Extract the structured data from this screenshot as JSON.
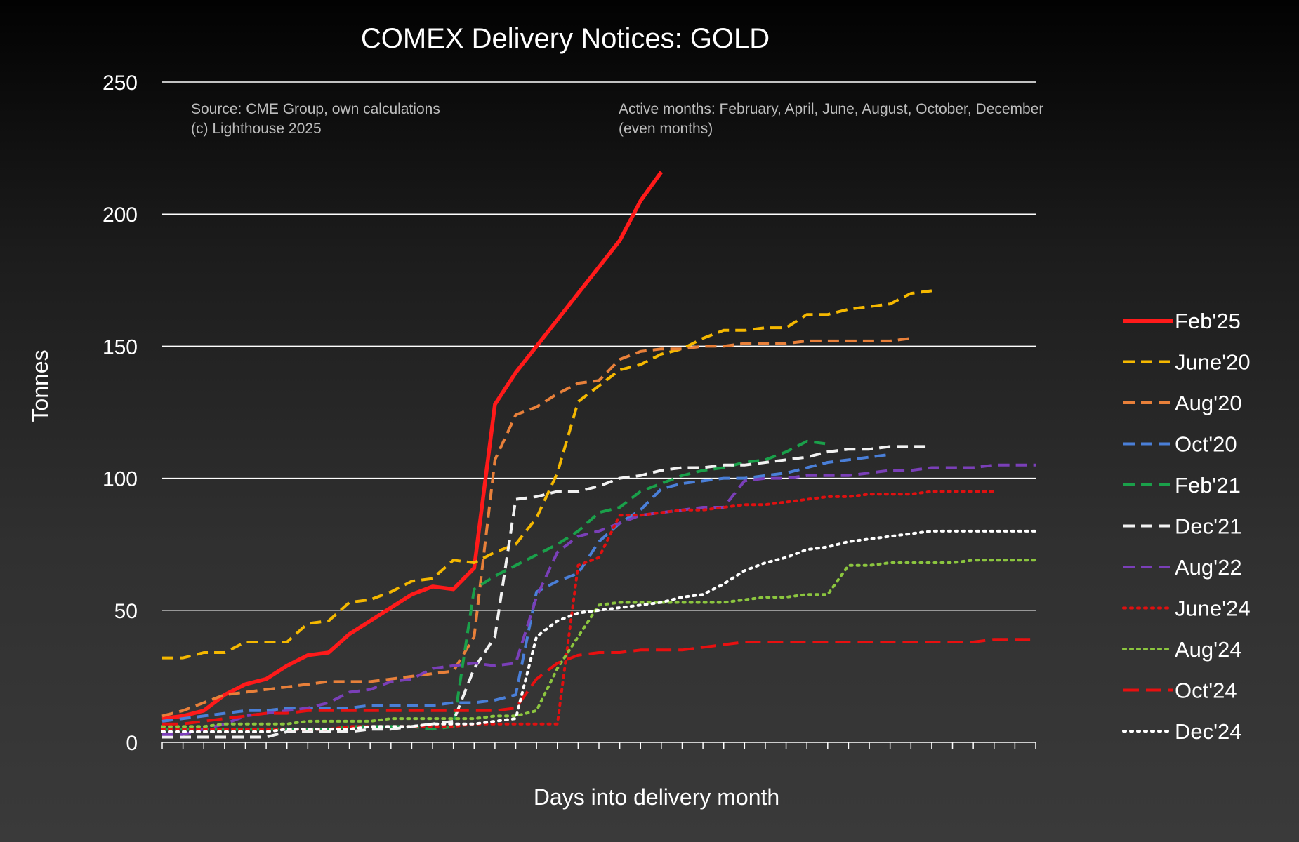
{
  "chart_data": {
    "type": "line",
    "title": "COMEX Delivery Notices: GOLD",
    "xlabel": "Days into delivery month",
    "ylabel": "Tonnes",
    "ylim": [
      0,
      250
    ],
    "yticks": [
      "0",
      "50",
      "100",
      "150",
      "200",
      "250"
    ],
    "xlim": [
      0,
      42
    ],
    "grid": "horizontal",
    "legend_position": "right",
    "notes": {
      "source_line1": "Source: CME Group, own calculations",
      "source_line2": "(c) Lighthouse 2025",
      "active_line1": "Active months: February, April, June, August, October, December",
      "active_line2": "(even months)"
    },
    "series": [
      {
        "name": "Feb'25",
        "color": "#ff1a1a",
        "dash": "solid",
        "x": [
          0,
          1,
          2,
          3,
          4,
          5,
          6,
          7,
          8,
          9,
          10,
          11,
          12,
          13,
          14,
          15,
          16,
          17,
          18,
          19,
          20,
          21,
          22,
          23,
          24,
          25,
          26,
          27,
          28,
          29
        ],
        "y": [
          9,
          10,
          12,
          18,
          22,
          24,
          29,
          33,
          34,
          41,
          46,
          51,
          56,
          59,
          58,
          66,
          128,
          140,
          150,
          160,
          170,
          180,
          190,
          205,
          216,
          null,
          null,
          null,
          null,
          null
        ]
      },
      {
        "name": "June'20",
        "color": "#f5b800",
        "dash": "dash",
        "x": [
          0,
          1,
          2,
          3,
          4,
          5,
          6,
          7,
          8,
          9,
          10,
          11,
          12,
          13,
          14,
          15,
          16,
          17,
          18,
          19,
          20,
          21,
          22,
          23,
          24,
          25,
          26,
          27,
          28,
          29,
          30,
          31,
          32,
          33,
          34,
          35,
          36,
          37,
          38,
          39
        ],
        "y": [
          32,
          32,
          34,
          34,
          38,
          38,
          38,
          45,
          46,
          53,
          54,
          57,
          61,
          62,
          69,
          68,
          72,
          75,
          85,
          102,
          129,
          135,
          141,
          143,
          147,
          149,
          153,
          156,
          156,
          157,
          157,
          162,
          162,
          164,
          165,
          166,
          170,
          171,
          null,
          null
        ]
      },
      {
        "name": "Aug'20",
        "color": "#e8803a",
        "dash": "dash",
        "x": [
          0,
          1,
          2,
          3,
          4,
          5,
          6,
          7,
          8,
          9,
          10,
          11,
          12,
          13,
          14,
          15,
          16,
          17,
          18,
          19,
          20,
          21,
          22,
          23,
          24,
          25,
          26,
          27,
          28,
          29,
          30,
          31,
          32,
          33,
          34,
          35,
          36,
          37,
          38
        ],
        "y": [
          10,
          12,
          15,
          18,
          19,
          20,
          21,
          22,
          23,
          23,
          23,
          24,
          25,
          26,
          27,
          40,
          107,
          124,
          127,
          132,
          136,
          137,
          145,
          148,
          149,
          149,
          150,
          150,
          151,
          151,
          151,
          152,
          152,
          152,
          152,
          152,
          153,
          null,
          null
        ]
      },
      {
        "name": "Oct'20",
        "color": "#4a7fd8",
        "dash": "dash",
        "x": [
          0,
          1,
          2,
          3,
          4,
          5,
          6,
          7,
          8,
          9,
          10,
          11,
          12,
          13,
          14,
          15,
          16,
          17,
          18,
          19,
          20,
          21,
          22,
          23,
          24,
          25,
          26,
          27,
          28,
          29,
          30,
          31,
          32,
          33,
          34,
          35,
          36,
          37
        ],
        "y": [
          8,
          9,
          10,
          11,
          12,
          12,
          13,
          13,
          13,
          13,
          14,
          14,
          14,
          14,
          15,
          15,
          16,
          18,
          57,
          61,
          64,
          76,
          83,
          88,
          96,
          98,
          99,
          100,
          100,
          101,
          102,
          104,
          106,
          107,
          108,
          109,
          null,
          null
        ]
      },
      {
        "name": "Feb'21",
        "color": "#1aa04a",
        "dash": "dash",
        "x": [
          0,
          1,
          2,
          3,
          4,
          5,
          6,
          7,
          8,
          9,
          10,
          11,
          12,
          13,
          14,
          15,
          16,
          17,
          18,
          19,
          20,
          21,
          22,
          23,
          24,
          25,
          26,
          27,
          28,
          29,
          30,
          31,
          32,
          33
        ],
        "y": [
          5,
          5,
          5,
          5,
          5,
          5,
          5,
          5,
          5,
          6,
          6,
          6,
          6,
          5,
          6,
          58,
          63,
          67,
          71,
          75,
          80,
          87,
          89,
          95,
          98,
          101,
          103,
          104,
          106,
          107,
          110,
          114,
          113,
          null
        ]
      },
      {
        "name": "Dec'21",
        "color": "#f2f2f2",
        "dash": "dash",
        "x": [
          0,
          1,
          2,
          3,
          4,
          5,
          6,
          7,
          8,
          9,
          10,
          11,
          12,
          13,
          14,
          15,
          16,
          17,
          18,
          19,
          20,
          21,
          22,
          23,
          24,
          25,
          26,
          27,
          28,
          29,
          30,
          31,
          32,
          33,
          34,
          35,
          36,
          37,
          38
        ],
        "y": [
          2,
          2,
          2,
          2,
          2,
          2,
          4,
          4,
          4,
          4,
          5,
          5,
          6,
          7,
          8,
          28,
          40,
          92,
          93,
          95,
          95,
          97,
          100,
          101,
          103,
          104,
          104,
          105,
          105,
          106,
          107,
          108,
          110,
          111,
          111,
          112,
          112,
          112,
          null
        ]
      },
      {
        "name": "Aug'22",
        "color": "#7a3fb8",
        "dash": "dash",
        "x": [
          0,
          1,
          2,
          3,
          4,
          5,
          6,
          7,
          8,
          9,
          10,
          11,
          12,
          13,
          14,
          15,
          16,
          17,
          18,
          19,
          20,
          21,
          22,
          23,
          24,
          25,
          26,
          27,
          28,
          29,
          30,
          31,
          32,
          33,
          34,
          35,
          36,
          37,
          38,
          39,
          40,
          41,
          42
        ],
        "y": [
          3,
          3,
          5,
          7,
          10,
          11,
          12,
          13,
          15,
          19,
          20,
          23,
          24,
          28,
          29,
          30,
          29,
          30,
          55,
          72,
          78,
          80,
          83,
          86,
          87,
          88,
          89,
          89,
          99,
          100,
          100,
          101,
          101,
          101,
          102,
          103,
          103,
          104,
          104,
          104,
          105,
          105,
          105
        ]
      },
      {
        "name": "June'24",
        "color": "#e01010",
        "dash": "dot",
        "x": [
          0,
          1,
          2,
          3,
          4,
          5,
          6,
          7,
          8,
          9,
          10,
          11,
          12,
          13,
          14,
          15,
          16,
          17,
          18,
          19,
          20,
          21,
          22,
          23,
          24,
          25,
          26,
          27,
          28,
          29,
          30,
          31,
          32,
          33,
          34,
          35,
          36,
          37,
          38,
          39,
          40
        ],
        "y": [
          5,
          5,
          5,
          5,
          5,
          5,
          5,
          5,
          5,
          6,
          6,
          6,
          6,
          6,
          6,
          7,
          7,
          7,
          7,
          7,
          67,
          70,
          86,
          86,
          87,
          88,
          88,
          89,
          90,
          90,
          91,
          92,
          93,
          93,
          94,
          94,
          94,
          95,
          95,
          95,
          95
        ]
      },
      {
        "name": "Aug'24",
        "color": "#8cc63f",
        "dash": "dot",
        "x": [
          0,
          1,
          2,
          3,
          4,
          5,
          6,
          7,
          8,
          9,
          10,
          11,
          12,
          13,
          14,
          15,
          16,
          17,
          18,
          19,
          20,
          21,
          22,
          23,
          24,
          25,
          26,
          27,
          28,
          29,
          30,
          31,
          32,
          33,
          34,
          35,
          36,
          37,
          38,
          39,
          40,
          41,
          42
        ],
        "y": [
          6,
          6,
          6,
          7,
          7,
          7,
          7,
          8,
          8,
          8,
          8,
          9,
          9,
          9,
          9,
          9,
          10,
          10,
          12,
          28,
          40,
          52,
          53,
          53,
          53,
          53,
          53,
          53,
          54,
          55,
          55,
          56,
          56,
          67,
          67,
          68,
          68,
          68,
          68,
          69,
          69,
          69,
          69
        ]
      },
      {
        "name": "Oct'24",
        "color": "#e81010",
        "dash": "longdash",
        "x": [
          0,
          1,
          2,
          3,
          4,
          5,
          6,
          7,
          8,
          9,
          10,
          11,
          12,
          13,
          14,
          15,
          16,
          17,
          18,
          19,
          20,
          21,
          22,
          23,
          24,
          25,
          26,
          27,
          28,
          29,
          30,
          31,
          32,
          33,
          34,
          35,
          36,
          37,
          38,
          39,
          40,
          41,
          42
        ],
        "y": [
          7,
          7,
          8,
          9,
          10,
          11,
          11,
          12,
          12,
          12,
          12,
          12,
          12,
          12,
          12,
          12,
          12,
          13,
          24,
          30,
          33,
          34,
          34,
          35,
          35,
          35,
          36,
          37,
          38,
          38,
          38,
          38,
          38,
          38,
          38,
          38,
          38,
          38,
          38,
          38,
          39,
          39,
          39
        ]
      },
      {
        "name": "Dec'24",
        "color": "#ffffff",
        "dash": "dot",
        "x": [
          0,
          1,
          2,
          3,
          4,
          5,
          6,
          7,
          8,
          9,
          10,
          11,
          12,
          13,
          14,
          15,
          16,
          17,
          18,
          19,
          20,
          21,
          22,
          23,
          24,
          25,
          26,
          27,
          28,
          29,
          30,
          31,
          32,
          33,
          34,
          35,
          36,
          37,
          38,
          39,
          40,
          41,
          42
        ],
        "y": [
          4,
          4,
          4,
          4,
          4,
          4,
          5,
          5,
          5,
          5,
          6,
          6,
          6,
          7,
          7,
          7,
          8,
          9,
          40,
          46,
          49,
          50,
          51,
          52,
          53,
          55,
          56,
          60,
          65,
          68,
          70,
          73,
          74,
          76,
          77,
          78,
          79,
          80,
          80,
          80,
          80,
          80,
          80
        ]
      }
    ]
  }
}
